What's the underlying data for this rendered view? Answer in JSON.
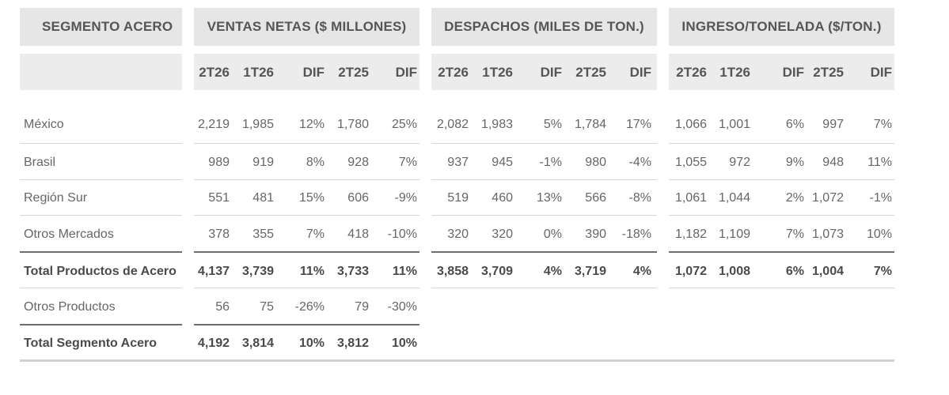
{
  "headers": {
    "segment": "SEGMENTO ACERO",
    "ventas": "VENTAS NETAS ($ MILLONES)",
    "despachos": "DESPACHOS (MILES DE TON.)",
    "ingreso": "INGRESO/TONELADA ($/TON.)"
  },
  "columns": [
    "2T26",
    "1T26",
    "DIF",
    "2T25",
    "DIF"
  ],
  "rows": [
    {
      "label": "México",
      "bold": false,
      "ventas": [
        "2,219",
        "1,985",
        "12%",
        "1,780",
        "25%"
      ],
      "despachos": [
        "2,082",
        "1,983",
        "5%",
        "1,784",
        "17%"
      ],
      "ingreso": [
        "1,066",
        "1,001",
        "6%",
        "997",
        "7%"
      ]
    },
    {
      "label": "Brasil",
      "bold": false,
      "ventas": [
        "989",
        "919",
        "8%",
        "928",
        "7%"
      ],
      "despachos": [
        "937",
        "945",
        "-1%",
        "980",
        "-4%"
      ],
      "ingreso": [
        "1,055",
        "972",
        "9%",
        "948",
        "11%"
      ]
    },
    {
      "label": "Región Sur",
      "bold": false,
      "ventas": [
        "551",
        "481",
        "15%",
        "606",
        "-9%"
      ],
      "despachos": [
        "519",
        "460",
        "13%",
        "566",
        "-8%"
      ],
      "ingreso": [
        "1,061",
        "1,044",
        "2%",
        "1,072",
        "-1%"
      ]
    },
    {
      "label": "Otros Mercados",
      "bold": false,
      "ventas": [
        "378",
        "355",
        "7%",
        "418",
        "-10%"
      ],
      "despachos": [
        "320",
        "320",
        "0%",
        "390",
        "-18%"
      ],
      "ingreso": [
        "1,182",
        "1,109",
        "7%",
        "1,073",
        "10%"
      ]
    },
    {
      "label": "Total Productos de Acero",
      "bold": true,
      "ventas": [
        "4,137",
        "3,739",
        "11%",
        "3,733",
        "11%"
      ],
      "despachos": [
        "3,858",
        "3,709",
        "4%",
        "3,719",
        "4%"
      ],
      "ingreso": [
        "1,072",
        "1,008",
        "6%",
        "1,004",
        "7%"
      ]
    },
    {
      "label": "Otros Productos",
      "bold": false,
      "ventas": [
        "56",
        "75",
        "-26%",
        "79",
        "-30%"
      ]
    },
    {
      "label": "Total Segmento Acero",
      "bold": true,
      "ventas": [
        "4,192",
        "3,814",
        "10%",
        "3,812",
        "10%"
      ]
    }
  ]
}
